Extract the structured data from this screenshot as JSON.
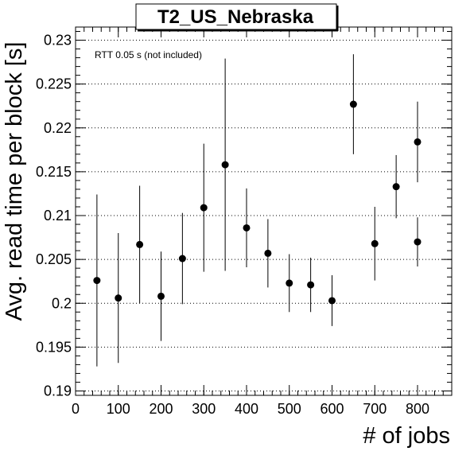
{
  "chart_data": {
    "type": "scatter",
    "title": "T2_US_Nebraska",
    "xlabel": "# of jobs",
    "ylabel": "Avg. read time per block [s]",
    "annotation": "RTT 0.05 s (not included)",
    "xlim": [
      0,
      880
    ],
    "ylim": [
      0.1895,
      0.2315
    ],
    "x_ticks": [
      0,
      100,
      200,
      300,
      400,
      500,
      600,
      700,
      800
    ],
    "x_tick_labels": [
      "0",
      "100",
      "200",
      "300",
      "400",
      "500",
      "600",
      "700",
      "800"
    ],
    "y_ticks": [
      0.19,
      0.195,
      0.2,
      0.205,
      0.21,
      0.215,
      0.22,
      0.225,
      0.23
    ],
    "y_tick_labels": [
      "0.19",
      "0.195",
      "0.2",
      "0.205",
      "0.21",
      "0.215",
      "0.22",
      "0.225",
      "0.23"
    ],
    "grid": "horizontal dotted",
    "series": [
      {
        "points": [
          {
            "x": 50,
            "y": 0.2026,
            "err": 0.0098
          },
          {
            "x": 100,
            "y": 0.2006,
            "err": 0.0074
          },
          {
            "x": 150,
            "y": 0.2067,
            "err": 0.0067
          },
          {
            "x": 200,
            "y": 0.2008,
            "err": 0.0051
          },
          {
            "x": 250,
            "y": 0.2051,
            "err": 0.0052
          },
          {
            "x": 300,
            "y": 0.2109,
            "err": 0.0073
          },
          {
            "x": 350,
            "y": 0.2158,
            "err": 0.0121
          },
          {
            "x": 400,
            "y": 0.2086,
            "err": 0.0045
          },
          {
            "x": 450,
            "y": 0.2057,
            "err": 0.0039
          },
          {
            "x": 500,
            "y": 0.2023,
            "err": 0.0033
          },
          {
            "x": 550,
            "y": 0.2021,
            "err": 0.0031
          },
          {
            "x": 600,
            "y": 0.2003,
            "err": 0.0029
          },
          {
            "x": 650,
            "y": 0.2227,
            "err": 0.0057
          },
          {
            "x": 700,
            "y": 0.2068,
            "err": 0.0042
          },
          {
            "x": 750,
            "y": 0.2133,
            "err": 0.0036
          },
          {
            "x": 800,
            "y": 0.2184,
            "err": 0.0046
          },
          {
            "x": 800,
            "y": 0.207,
            "err": 0.0028
          }
        ]
      }
    ]
  }
}
